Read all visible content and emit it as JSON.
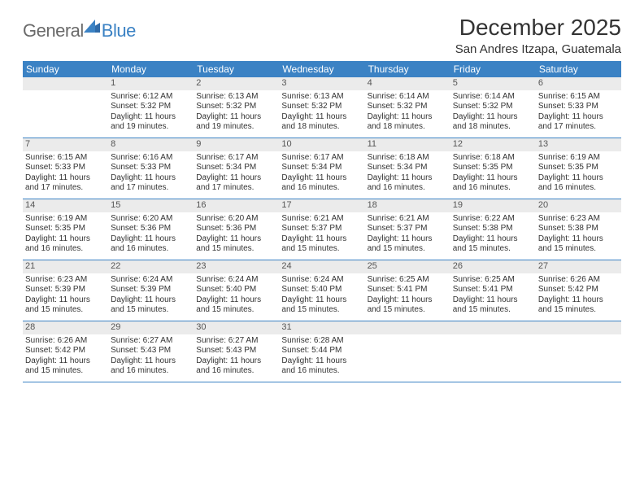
{
  "logo": {
    "general": "General",
    "blue": "Blue"
  },
  "title": "December 2025",
  "location": "San Andres Itzapa, Guatemala",
  "colors": {
    "header_bg": "#3b82c4",
    "header_text": "#ffffff",
    "daynum_bg": "#ebebeb",
    "rule": "#3b82c4",
    "text": "#333333"
  },
  "typography": {
    "title_fontsize": 28,
    "location_fontsize": 15,
    "dow_fontsize": 12,
    "cell_fontsize": 10
  },
  "days_of_week": [
    "Sunday",
    "Monday",
    "Tuesday",
    "Wednesday",
    "Thursday",
    "Friday",
    "Saturday"
  ],
  "weeks": [
    [
      {
        "n": "",
        "sunrise": "",
        "sunset": "",
        "daylight": ""
      },
      {
        "n": "1",
        "sunrise": "Sunrise: 6:12 AM",
        "sunset": "Sunset: 5:32 PM",
        "daylight": "Daylight: 11 hours and 19 minutes."
      },
      {
        "n": "2",
        "sunrise": "Sunrise: 6:13 AM",
        "sunset": "Sunset: 5:32 PM",
        "daylight": "Daylight: 11 hours and 19 minutes."
      },
      {
        "n": "3",
        "sunrise": "Sunrise: 6:13 AM",
        "sunset": "Sunset: 5:32 PM",
        "daylight": "Daylight: 11 hours and 18 minutes."
      },
      {
        "n": "4",
        "sunrise": "Sunrise: 6:14 AM",
        "sunset": "Sunset: 5:32 PM",
        "daylight": "Daylight: 11 hours and 18 minutes."
      },
      {
        "n": "5",
        "sunrise": "Sunrise: 6:14 AM",
        "sunset": "Sunset: 5:32 PM",
        "daylight": "Daylight: 11 hours and 18 minutes."
      },
      {
        "n": "6",
        "sunrise": "Sunrise: 6:15 AM",
        "sunset": "Sunset: 5:33 PM",
        "daylight": "Daylight: 11 hours and 17 minutes."
      }
    ],
    [
      {
        "n": "7",
        "sunrise": "Sunrise: 6:15 AM",
        "sunset": "Sunset: 5:33 PM",
        "daylight": "Daylight: 11 hours and 17 minutes."
      },
      {
        "n": "8",
        "sunrise": "Sunrise: 6:16 AM",
        "sunset": "Sunset: 5:33 PM",
        "daylight": "Daylight: 11 hours and 17 minutes."
      },
      {
        "n": "9",
        "sunrise": "Sunrise: 6:17 AM",
        "sunset": "Sunset: 5:34 PM",
        "daylight": "Daylight: 11 hours and 17 minutes."
      },
      {
        "n": "10",
        "sunrise": "Sunrise: 6:17 AM",
        "sunset": "Sunset: 5:34 PM",
        "daylight": "Daylight: 11 hours and 16 minutes."
      },
      {
        "n": "11",
        "sunrise": "Sunrise: 6:18 AM",
        "sunset": "Sunset: 5:34 PM",
        "daylight": "Daylight: 11 hours and 16 minutes."
      },
      {
        "n": "12",
        "sunrise": "Sunrise: 6:18 AM",
        "sunset": "Sunset: 5:35 PM",
        "daylight": "Daylight: 11 hours and 16 minutes."
      },
      {
        "n": "13",
        "sunrise": "Sunrise: 6:19 AM",
        "sunset": "Sunset: 5:35 PM",
        "daylight": "Daylight: 11 hours and 16 minutes."
      }
    ],
    [
      {
        "n": "14",
        "sunrise": "Sunrise: 6:19 AM",
        "sunset": "Sunset: 5:35 PM",
        "daylight": "Daylight: 11 hours and 16 minutes."
      },
      {
        "n": "15",
        "sunrise": "Sunrise: 6:20 AM",
        "sunset": "Sunset: 5:36 PM",
        "daylight": "Daylight: 11 hours and 16 minutes."
      },
      {
        "n": "16",
        "sunrise": "Sunrise: 6:20 AM",
        "sunset": "Sunset: 5:36 PM",
        "daylight": "Daylight: 11 hours and 15 minutes."
      },
      {
        "n": "17",
        "sunrise": "Sunrise: 6:21 AM",
        "sunset": "Sunset: 5:37 PM",
        "daylight": "Daylight: 11 hours and 15 minutes."
      },
      {
        "n": "18",
        "sunrise": "Sunrise: 6:21 AM",
        "sunset": "Sunset: 5:37 PM",
        "daylight": "Daylight: 11 hours and 15 minutes."
      },
      {
        "n": "19",
        "sunrise": "Sunrise: 6:22 AM",
        "sunset": "Sunset: 5:38 PM",
        "daylight": "Daylight: 11 hours and 15 minutes."
      },
      {
        "n": "20",
        "sunrise": "Sunrise: 6:23 AM",
        "sunset": "Sunset: 5:38 PM",
        "daylight": "Daylight: 11 hours and 15 minutes."
      }
    ],
    [
      {
        "n": "21",
        "sunrise": "Sunrise: 6:23 AM",
        "sunset": "Sunset: 5:39 PM",
        "daylight": "Daylight: 11 hours and 15 minutes."
      },
      {
        "n": "22",
        "sunrise": "Sunrise: 6:24 AM",
        "sunset": "Sunset: 5:39 PM",
        "daylight": "Daylight: 11 hours and 15 minutes."
      },
      {
        "n": "23",
        "sunrise": "Sunrise: 6:24 AM",
        "sunset": "Sunset: 5:40 PM",
        "daylight": "Daylight: 11 hours and 15 minutes."
      },
      {
        "n": "24",
        "sunrise": "Sunrise: 6:24 AM",
        "sunset": "Sunset: 5:40 PM",
        "daylight": "Daylight: 11 hours and 15 minutes."
      },
      {
        "n": "25",
        "sunrise": "Sunrise: 6:25 AM",
        "sunset": "Sunset: 5:41 PM",
        "daylight": "Daylight: 11 hours and 15 minutes."
      },
      {
        "n": "26",
        "sunrise": "Sunrise: 6:25 AM",
        "sunset": "Sunset: 5:41 PM",
        "daylight": "Daylight: 11 hours and 15 minutes."
      },
      {
        "n": "27",
        "sunrise": "Sunrise: 6:26 AM",
        "sunset": "Sunset: 5:42 PM",
        "daylight": "Daylight: 11 hours and 15 minutes."
      }
    ],
    [
      {
        "n": "28",
        "sunrise": "Sunrise: 6:26 AM",
        "sunset": "Sunset: 5:42 PM",
        "daylight": "Daylight: 11 hours and 15 minutes."
      },
      {
        "n": "29",
        "sunrise": "Sunrise: 6:27 AM",
        "sunset": "Sunset: 5:43 PM",
        "daylight": "Daylight: 11 hours and 16 minutes."
      },
      {
        "n": "30",
        "sunrise": "Sunrise: 6:27 AM",
        "sunset": "Sunset: 5:43 PM",
        "daylight": "Daylight: 11 hours and 16 minutes."
      },
      {
        "n": "31",
        "sunrise": "Sunrise: 6:28 AM",
        "sunset": "Sunset: 5:44 PM",
        "daylight": "Daylight: 11 hours and 16 minutes."
      },
      {
        "n": "",
        "sunrise": "",
        "sunset": "",
        "daylight": ""
      },
      {
        "n": "",
        "sunrise": "",
        "sunset": "",
        "daylight": ""
      },
      {
        "n": "",
        "sunrise": "",
        "sunset": "",
        "daylight": ""
      }
    ]
  ]
}
